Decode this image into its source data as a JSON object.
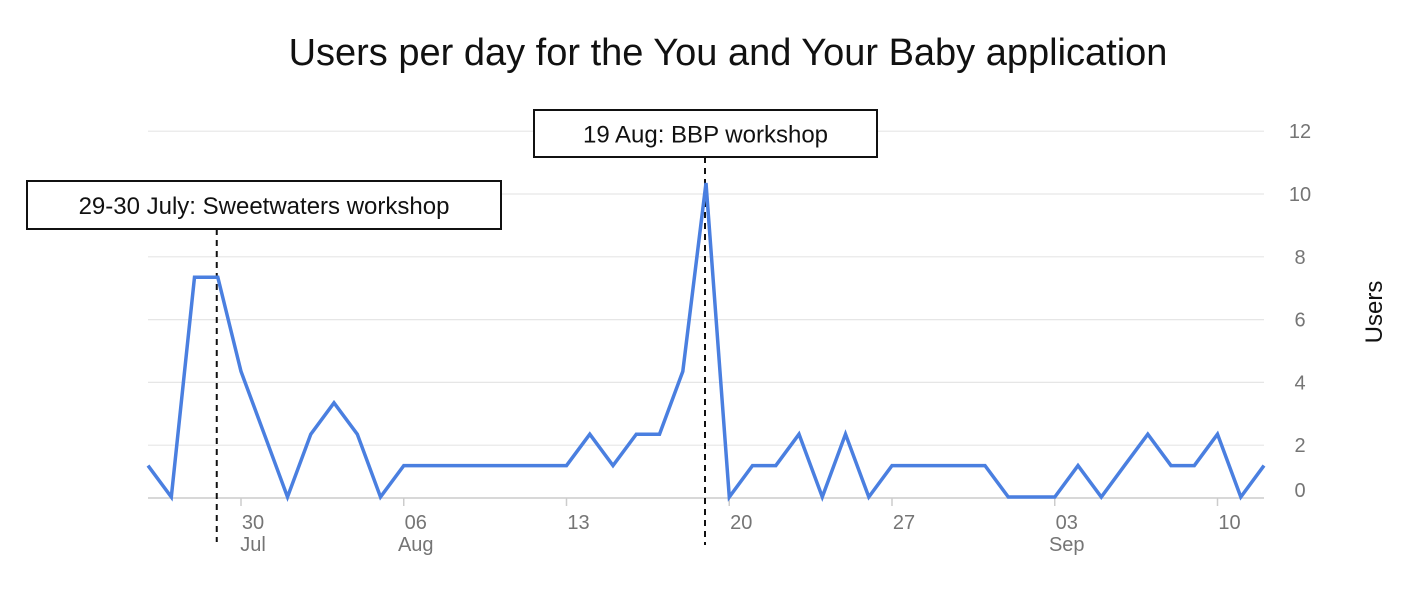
{
  "chart_data": {
    "type": "line",
    "title": "Users per day for the You and Your Baby application",
    "xlabel": "",
    "ylabel": "Users",
    "ylim": [
      0,
      12
    ],
    "yticks": [
      0,
      2,
      4,
      6,
      8,
      10,
      12
    ],
    "xlim": [
      "2018-07-26",
      "2018-09-12"
    ],
    "grid": true,
    "y_axis_position": "right",
    "line_color": "#4a7fe0",
    "x_ticks": [
      {
        "date": "2018-07-30",
        "label": "30",
        "sublabel": "Jul"
      },
      {
        "date": "2018-08-06",
        "label": "06",
        "sublabel": "Aug"
      },
      {
        "date": "2018-08-13",
        "label": "13",
        "sublabel": ""
      },
      {
        "date": "2018-08-20",
        "label": "20",
        "sublabel": ""
      },
      {
        "date": "2018-08-27",
        "label": "27",
        "sublabel": ""
      },
      {
        "date": "2018-09-03",
        "label": "03",
        "sublabel": "Sep"
      },
      {
        "date": "2018-09-10",
        "label": "10",
        "sublabel": ""
      }
    ],
    "series": [
      {
        "x": [
          "2018-07-26",
          "2018-07-27",
          "2018-07-28",
          "2018-07-29",
          "2018-07-30",
          "2018-07-31",
          "2018-08-01",
          "2018-08-02",
          "2018-08-03",
          "2018-08-04",
          "2018-08-05",
          "2018-08-06",
          "2018-08-07",
          "2018-08-08",
          "2018-08-09",
          "2018-08-10",
          "2018-08-11",
          "2018-08-12",
          "2018-08-13",
          "2018-08-14",
          "2018-08-15",
          "2018-08-16",
          "2018-08-17",
          "2018-08-18",
          "2018-08-19",
          "2018-08-20",
          "2018-08-21",
          "2018-08-22",
          "2018-08-23",
          "2018-08-24",
          "2018-08-25",
          "2018-08-26",
          "2018-08-27",
          "2018-08-28",
          "2018-08-29",
          "2018-08-30",
          "2018-08-31",
          "2018-09-01",
          "2018-09-02",
          "2018-09-03",
          "2018-09-04",
          "2018-09-05",
          "2018-09-06",
          "2018-09-07",
          "2018-09-08",
          "2018-09-09",
          "2018-09-10",
          "2018-09-11",
          "2018-09-12"
        ],
        "values": [
          1,
          0,
          7,
          7,
          4,
          2,
          0,
          2,
          3,
          2,
          0,
          1,
          1,
          1,
          1,
          1,
          1,
          1,
          1,
          2,
          1,
          2,
          2,
          4,
          10,
          0,
          1,
          1,
          2,
          0,
          2,
          0,
          1,
          1,
          1,
          1,
          1,
          0,
          0,
          0,
          1,
          0,
          1,
          2,
          1,
          1,
          2,
          0,
          1
        ]
      }
    ],
    "annotations": [
      {
        "text": "29-30 July: Sweetwaters workshop",
        "date": "2018-07-29"
      },
      {
        "text": "19 Aug: BBP workshop",
        "date": "2018-08-19"
      }
    ]
  }
}
